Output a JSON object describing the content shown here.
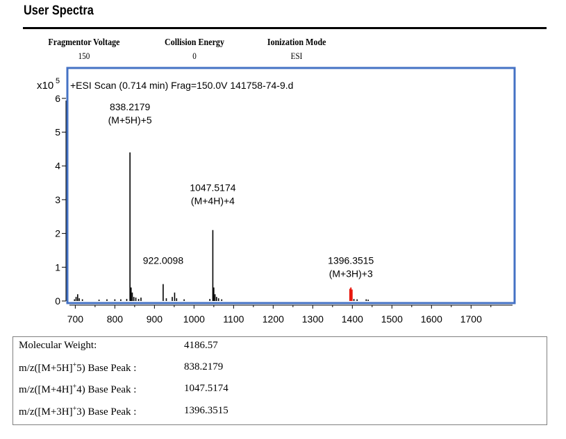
{
  "header": {
    "title": "User Spectra"
  },
  "params": [
    {
      "name": "Fragmentor Voltage",
      "value": "150"
    },
    {
      "name": "Collision Energy",
      "value": "0"
    },
    {
      "name": "Ionization Mode",
      "value": "ESI"
    }
  ],
  "chart_data": {
    "type": "bar",
    "scan_label": "+ESI Scan (0.714 min) Frag=150.0V 141758-74-9.d",
    "y_exponent_label": "x10",
    "y_exponent": "5",
    "xlim": [
      680,
      1810
    ],
    "ylim": [
      0,
      6.9
    ],
    "x_ticks": [
      700,
      800,
      900,
      1000,
      1100,
      1200,
      1300,
      1400,
      1500,
      1600,
      1700
    ],
    "y_ticks": [
      0,
      1,
      2,
      3,
      4,
      5,
      6
    ],
    "peak_color": "#000000",
    "highlight_color": "#e8190f",
    "frame_color": "#4472c4",
    "peaks": [
      {
        "mz": 698,
        "intensity": 0.05
      },
      {
        "mz": 702,
        "intensity": 0.12
      },
      {
        "mz": 706,
        "intensity": 0.2
      },
      {
        "mz": 710,
        "intensity": 0.08
      },
      {
        "mz": 718,
        "intensity": 0.05
      },
      {
        "mz": 760,
        "intensity": 0.04
      },
      {
        "mz": 780,
        "intensity": 0.05
      },
      {
        "mz": 800,
        "intensity": 0.05
      },
      {
        "mz": 815,
        "intensity": 0.05
      },
      {
        "mz": 830,
        "intensity": 0.06
      },
      {
        "mz": 838.2179,
        "intensity": 4.4
      },
      {
        "mz": 841,
        "intensity": 0.4
      },
      {
        "mz": 844,
        "intensity": 0.25
      },
      {
        "mz": 848,
        "intensity": 0.12
      },
      {
        "mz": 853,
        "intensity": 0.1
      },
      {
        "mz": 860,
        "intensity": 0.06
      },
      {
        "mz": 866,
        "intensity": 0.1
      },
      {
        "mz": 922.0098,
        "intensity": 0.5
      },
      {
        "mz": 930,
        "intensity": 0.08
      },
      {
        "mz": 945,
        "intensity": 0.12
      },
      {
        "mz": 951,
        "intensity": 0.25
      },
      {
        "mz": 956,
        "intensity": 0.08
      },
      {
        "mz": 975,
        "intensity": 0.05
      },
      {
        "mz": 1040,
        "intensity": 0.06
      },
      {
        "mz": 1047.5174,
        "intensity": 2.1
      },
      {
        "mz": 1050,
        "intensity": 0.4
      },
      {
        "mz": 1053,
        "intensity": 0.2
      },
      {
        "mz": 1057,
        "intensity": 0.12
      },
      {
        "mz": 1062,
        "intensity": 0.08
      },
      {
        "mz": 1070,
        "intensity": 0.05
      },
      {
        "mz": 1394,
        "intensity": 0.36,
        "highlight": true
      },
      {
        "mz": 1396.3515,
        "intensity": 0.4,
        "highlight": true
      },
      {
        "mz": 1399,
        "intensity": 0.34,
        "highlight": true
      },
      {
        "mz": 1404,
        "intensity": 0.06
      },
      {
        "mz": 1412,
        "intensity": 0.05
      },
      {
        "mz": 1435,
        "intensity": 0.05
      },
      {
        "mz": 1440,
        "intensity": 0.04
      }
    ],
    "annotations": [
      {
        "mz": 838.2179,
        "lines": [
          "838.2179",
          "(M+5H)+5"
        ],
        "label_y": 5.65
      },
      {
        "mz": 922.0098,
        "lines": [
          "922.0098"
        ],
        "label_y": 1.1
      },
      {
        "mz": 1047.5174,
        "lines": [
          "1047.5174",
          "(M+4H)+4"
        ],
        "label_y": 3.25
      },
      {
        "mz": 1396.3515,
        "lines": [
          "1396.3515",
          "(M+3H)+3"
        ],
        "label_y": 1.1
      }
    ]
  },
  "summary": {
    "rows": [
      {
        "label": "Molecular Weight:",
        "value": "4186.57"
      },
      {
        "label_pre": "m/z([M+5H]",
        "label_sup": "+",
        "label_post": "5) Base Peak :",
        "value": "838.2179"
      },
      {
        "label_pre": "m/z([M+4H]",
        "label_sup": "+",
        "label_post": "4) Base Peak :",
        "value": "1047.5174"
      },
      {
        "label_pre": "m/z([M+3H]",
        "label_sup": "+",
        "label_post": "3) Base Peak :",
        "value": "1396.3515"
      }
    ]
  }
}
